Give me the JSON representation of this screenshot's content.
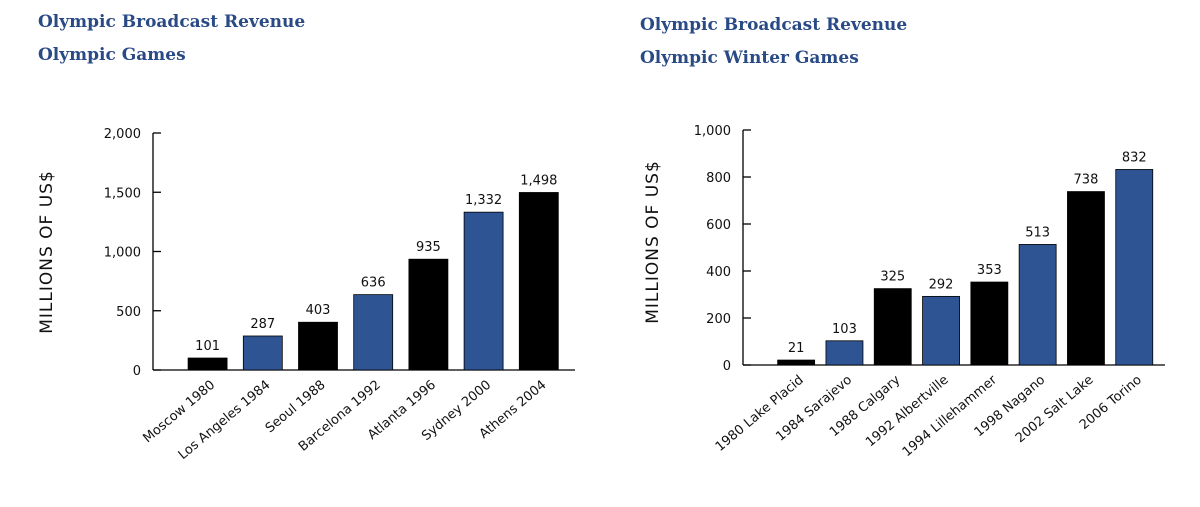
{
  "chart_data": [
    {
      "type": "bar",
      "title": "Olympic Broadcast Revenue",
      "subtitle": "Olympic Games",
      "ylabel": "MILLIONS OF US$",
      "xlabel": "",
      "categories": [
        "Moscow 1980",
        "Los Angeles 1984",
        "Seoul 1988",
        "Barcelona 1992",
        "Atlanta 1996",
        "Sydney 2000",
        "Athens 2004"
      ],
      "values": [
        101,
        287,
        403,
        636,
        935,
        1332,
        1498
      ],
      "value_labels": [
        "101",
        "287",
        "403",
        "636",
        "935",
        "1,332",
        "1,498"
      ],
      "bar_colors": [
        "#000000",
        "#2e5494",
        "#000000",
        "#2e5494",
        "#000000",
        "#2e5494",
        "#000000"
      ],
      "yticks": [
        0,
        500,
        1000,
        1500,
        2000
      ],
      "ytick_labels": [
        "0",
        "500",
        "1,000",
        "1,500",
        "2,000"
      ],
      "ylim": [
        0,
        2000
      ],
      "grid": false
    },
    {
      "type": "bar",
      "title": "Olympic Broadcast Revenue",
      "subtitle": "Olympic Winter Games",
      "ylabel": "MILLIONS OF US$",
      "xlabel": "",
      "categories": [
        "1980 Lake Placid",
        "1984 Sarajevo",
        "1988 Calgary",
        "1992 Albertville",
        "1994 Lillehammer",
        "1998 Nagano",
        "2002 Salt Lake",
        "2006 Torino"
      ],
      "values": [
        21,
        103,
        325,
        292,
        353,
        513,
        738,
        832
      ],
      "value_labels": [
        "21",
        "103",
        "325",
        "292",
        "353",
        "513",
        "738",
        "832"
      ],
      "bar_colors": [
        "#000000",
        "#2e5494",
        "#000000",
        "#2e5494",
        "#000000",
        "#2e5494",
        "#000000",
        "#2e5494"
      ],
      "yticks": [
        0,
        200,
        400,
        600,
        800,
        1000
      ],
      "ytick_labels": [
        "0",
        "200",
        "400",
        "600",
        "800",
        "1,000"
      ],
      "ylim": [
        0,
        1000
      ],
      "grid": false
    }
  ]
}
